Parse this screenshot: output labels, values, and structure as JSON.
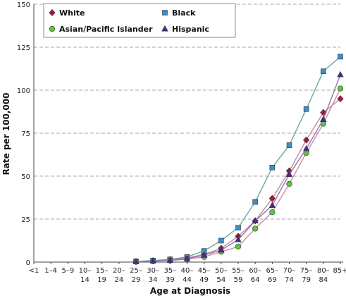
{
  "chart_data": {
    "type": "line",
    "xlabel": "Age at Diagnosis",
    "ylabel": "Rate per 100,000",
    "ylim": [
      0,
      150
    ],
    "yticks": [
      0,
      25,
      50,
      75,
      100,
      125,
      150
    ],
    "grid": "horizontal dashed",
    "legend_position": "top",
    "categories": [
      [
        "<1",
        ""
      ],
      [
        "1–4",
        ""
      ],
      [
        "5–9",
        ""
      ],
      [
        "10–",
        "14"
      ],
      [
        "15–",
        "19"
      ],
      [
        "20–",
        "24"
      ],
      [
        "25–",
        "29"
      ],
      [
        "30–",
        "34"
      ],
      [
        "35–",
        "39"
      ],
      [
        "40–",
        "44"
      ],
      [
        "45–",
        "49"
      ],
      [
        "50–",
        "54"
      ],
      [
        "55–",
        "59"
      ],
      [
        "60–",
        "64"
      ],
      [
        "65–",
        "69"
      ],
      [
        "70–",
        "74"
      ],
      [
        "75–",
        "79"
      ],
      [
        "80–",
        "84"
      ],
      [
        "85+",
        ""
      ]
    ],
    "series": [
      {
        "name": "White",
        "color": "#9e1c3f",
        "line_color": "#c98a9a",
        "marker": "diamond",
        "values": [
          null,
          null,
          null,
          null,
          null,
          null,
          0.3,
          0.8,
          1.3,
          2.4,
          4.5,
          8.0,
          15.0,
          24.0,
          37.0,
          53.0,
          71.0,
          87.0,
          95.0
        ]
      },
      {
        "name": "Black",
        "color": "#3b8ec9",
        "line_color": "#6aa8a8",
        "marker": "square",
        "values": [
          null,
          null,
          null,
          null,
          null,
          null,
          0.4,
          0.9,
          1.6,
          3.0,
          6.5,
          12.5,
          20.0,
          35.0,
          55.0,
          68.0,
          89.0,
          111.0,
          119.5
        ]
      },
      {
        "name": "Asian/Pacific Islander",
        "color": "#5cc83c",
        "line_color": "#d08aa6",
        "marker": "circle",
        "values": [
          null,
          null,
          null,
          null,
          null,
          null,
          0.2,
          0.5,
          0.9,
          1.7,
          3.0,
          6.0,
          9.0,
          19.5,
          29.0,
          45.5,
          63.5,
          80.5,
          101.0
        ]
      },
      {
        "name": "Hispanic",
        "color": "#4b2a8a",
        "line_color": "#8a7ab0",
        "marker": "triangle",
        "values": [
          null,
          null,
          null,
          null,
          null,
          null,
          0.3,
          0.6,
          1.0,
          2.0,
          4.0,
          7.0,
          13.0,
          24.0,
          33.0,
          51.0,
          66.0,
          83.0,
          109.0
        ]
      }
    ]
  }
}
